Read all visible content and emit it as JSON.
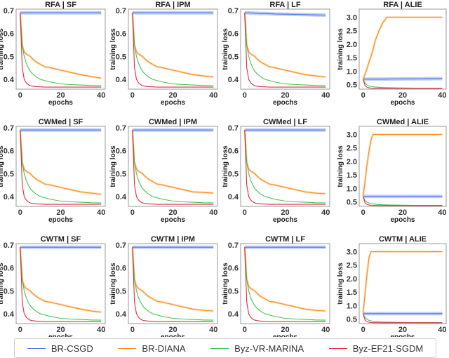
{
  "chart_data": [
    {
      "title": "RFA | SF",
      "type": "line",
      "ylim": [
        0.357,
        0.706
      ],
      "yticks": [
        0.4,
        0.5,
        0.6,
        0.7
      ],
      "series": [
        [
          0.69,
          0.69,
          0.69,
          0.69,
          0.69,
          0.69,
          0.69,
          0.69,
          0.69,
          0.69,
          0.69,
          0.69,
          0.69,
          0.69,
          0.69,
          0.69
        ],
        [
          0.69,
          0.55,
          0.52,
          0.51,
          0.505,
          0.5,
          0.49,
          0.475,
          0.465,
          0.455,
          0.45,
          0.44,
          0.43,
          0.42,
          0.412,
          0.405
        ],
        [
          0.69,
          0.55,
          0.5,
          0.47,
          0.45,
          0.435,
          0.425,
          0.41,
          0.4,
          0.395,
          0.388,
          0.38,
          0.377,
          0.375,
          0.373,
          0.372
        ],
        [
          0.69,
          0.45,
          0.4,
          0.385,
          0.377,
          0.372,
          0.37,
          0.368,
          0.367,
          0.366,
          0.366,
          0.366,
          0.366,
          0.366,
          0.366,
          0.366
        ]
      ]
    },
    {
      "title": "RFA | IPM",
      "type": "line",
      "ylim": [
        0.357,
        0.706
      ],
      "yticks": [
        0.4,
        0.5,
        0.6,
        0.7
      ],
      "series": [
        [
          0.69,
          0.69,
          0.69,
          0.69,
          0.69,
          0.69,
          0.69,
          0.69,
          0.69,
          0.69,
          0.69,
          0.69,
          0.69,
          0.69,
          0.69,
          0.69
        ],
        [
          0.69,
          0.55,
          0.52,
          0.51,
          0.505,
          0.5,
          0.49,
          0.475,
          0.465,
          0.455,
          0.45,
          0.44,
          0.43,
          0.42,
          0.415,
          0.41
        ],
        [
          0.69,
          0.55,
          0.5,
          0.47,
          0.45,
          0.435,
          0.425,
          0.41,
          0.4,
          0.395,
          0.388,
          0.38,
          0.377,
          0.375,
          0.373,
          0.372
        ],
        [
          0.69,
          0.45,
          0.4,
          0.385,
          0.377,
          0.372,
          0.37,
          0.368,
          0.367,
          0.366,
          0.366,
          0.366,
          0.366,
          0.366,
          0.366,
          0.366
        ]
      ]
    },
    {
      "title": "RFA | LF",
      "type": "line",
      "ylim": [
        0.357,
        0.706
      ],
      "yticks": [
        0.4,
        0.5,
        0.6,
        0.7
      ],
      "series": [
        [
          0.69,
          0.69,
          0.69,
          0.689,
          0.689,
          0.688,
          0.688,
          0.687,
          0.687,
          0.686,
          0.685,
          0.684,
          0.683,
          0.682,
          0.681,
          0.68
        ],
        [
          0.69,
          0.55,
          0.52,
          0.51,
          0.505,
          0.5,
          0.49,
          0.475,
          0.465,
          0.455,
          0.45,
          0.44,
          0.43,
          0.42,
          0.415,
          0.41
        ],
        [
          0.69,
          0.55,
          0.5,
          0.47,
          0.45,
          0.435,
          0.425,
          0.41,
          0.4,
          0.395,
          0.388,
          0.38,
          0.377,
          0.375,
          0.373,
          0.372
        ],
        [
          0.69,
          0.45,
          0.4,
          0.385,
          0.377,
          0.372,
          0.37,
          0.368,
          0.367,
          0.366,
          0.366,
          0.366,
          0.366,
          0.366,
          0.366,
          0.366
        ]
      ]
    },
    {
      "title": "RFA | ALIE",
      "type": "line",
      "ylim": [
        0.33,
        3.3
      ],
      "yticks": [
        0.5,
        1.0,
        1.5,
        2.0,
        2.5,
        3.0
      ],
      "series": [
        [
          0.7,
          0.7,
          0.7,
          0.7,
          0.7,
          0.7,
          0.7,
          0.7,
          0.7,
          0.705,
          0.707,
          0.71,
          0.712,
          0.715,
          0.717,
          0.72
        ],
        [
          0.69,
          0.9,
          1.1,
          1.35,
          1.55,
          1.8,
          2.1,
          2.5,
          2.8,
          3.0,
          3.0,
          3.0,
          3.0,
          3.0,
          3.0,
          3.0
        ],
        [
          0.69,
          0.55,
          0.48,
          0.45,
          0.43,
          0.42,
          0.41,
          0.4,
          0.39,
          0.385,
          0.38,
          0.375,
          0.37,
          0.37,
          0.37,
          0.37
        ],
        [
          0.69,
          0.45,
          0.4,
          0.38,
          0.37,
          0.365,
          0.363,
          0.362,
          0.361,
          0.36,
          0.36,
          0.36,
          0.36,
          0.36,
          0.36,
          0.36
        ]
      ]
    },
    {
      "title": "CWMed | SF",
      "type": "line",
      "ylim": [
        0.357,
        0.706
      ],
      "yticks": [
        0.4,
        0.5,
        0.6,
        0.7
      ],
      "series": [
        [
          0.69,
          0.69,
          0.69,
          0.69,
          0.69,
          0.69,
          0.69,
          0.69,
          0.69,
          0.69,
          0.69,
          0.69,
          0.69,
          0.69,
          0.69,
          0.69
        ],
        [
          0.69,
          0.55,
          0.52,
          0.51,
          0.505,
          0.5,
          0.49,
          0.475,
          0.465,
          0.455,
          0.45,
          0.44,
          0.43,
          0.42,
          0.415,
          0.41
        ],
        [
          0.69,
          0.55,
          0.5,
          0.47,
          0.45,
          0.435,
          0.425,
          0.41,
          0.4,
          0.395,
          0.388,
          0.38,
          0.377,
          0.375,
          0.373,
          0.372
        ],
        [
          0.69,
          0.45,
          0.4,
          0.385,
          0.377,
          0.372,
          0.37,
          0.368,
          0.367,
          0.366,
          0.366,
          0.366,
          0.366,
          0.366,
          0.366,
          0.366
        ]
      ]
    },
    {
      "title": "CWMed | IPM",
      "type": "line",
      "ylim": [
        0.357,
        0.706
      ],
      "yticks": [
        0.4,
        0.5,
        0.6,
        0.7
      ],
      "series": [
        [
          0.69,
          0.69,
          0.69,
          0.69,
          0.69,
          0.69,
          0.69,
          0.69,
          0.69,
          0.69,
          0.69,
          0.69,
          0.69,
          0.69,
          0.69,
          0.69
        ],
        [
          0.69,
          0.55,
          0.52,
          0.51,
          0.505,
          0.5,
          0.49,
          0.475,
          0.465,
          0.455,
          0.45,
          0.44,
          0.43,
          0.42,
          0.418,
          0.415
        ],
        [
          0.69,
          0.55,
          0.5,
          0.47,
          0.45,
          0.435,
          0.425,
          0.41,
          0.4,
          0.395,
          0.388,
          0.38,
          0.377,
          0.375,
          0.373,
          0.372
        ],
        [
          0.69,
          0.45,
          0.4,
          0.385,
          0.377,
          0.372,
          0.37,
          0.368,
          0.367,
          0.366,
          0.366,
          0.366,
          0.366,
          0.366,
          0.366,
          0.366
        ]
      ]
    },
    {
      "title": "CWMed | LF",
      "type": "line",
      "ylim": [
        0.357,
        0.706
      ],
      "yticks": [
        0.4,
        0.5,
        0.6,
        0.7
      ],
      "series": [
        [
          0.69,
          0.69,
          0.69,
          0.69,
          0.69,
          0.69,
          0.69,
          0.69,
          0.69,
          0.69,
          0.69,
          0.69,
          0.69,
          0.69,
          0.69,
          0.69
        ],
        [
          0.69,
          0.55,
          0.52,
          0.51,
          0.505,
          0.5,
          0.49,
          0.475,
          0.465,
          0.455,
          0.45,
          0.44,
          0.43,
          0.42,
          0.415,
          0.412
        ],
        [
          0.69,
          0.55,
          0.5,
          0.47,
          0.45,
          0.435,
          0.425,
          0.41,
          0.4,
          0.395,
          0.388,
          0.38,
          0.377,
          0.375,
          0.373,
          0.372
        ],
        [
          0.69,
          0.45,
          0.4,
          0.385,
          0.377,
          0.372,
          0.37,
          0.368,
          0.367,
          0.366,
          0.366,
          0.366,
          0.366,
          0.366,
          0.366,
          0.366
        ]
      ]
    },
    {
      "title": "CWMed | ALIE",
      "type": "line",
      "ylim": [
        0.33,
        3.3
      ],
      "yticks": [
        0.5,
        1.0,
        1.5,
        2.0,
        2.5,
        3.0
      ],
      "series": [
        [
          0.7,
          0.7,
          0.7,
          0.7,
          0.7,
          0.7,
          0.7,
          0.7,
          0.7,
          0.7,
          0.7,
          0.7,
          0.7,
          0.7,
          0.7,
          0.7
        ],
        [
          0.69,
          1.3,
          1.9,
          2.4,
          2.8,
          3.0,
          3.0,
          3.0,
          3.0,
          3.0,
          3.0,
          3.0,
          3.0,
          3.0,
          3.0,
          3.0
        ],
        [
          0.69,
          0.55,
          0.48,
          0.45,
          0.43,
          0.42,
          0.41,
          0.4,
          0.39,
          0.385,
          0.38,
          0.375,
          0.37,
          0.37,
          0.37,
          0.37
        ],
        [
          0.69,
          0.45,
          0.4,
          0.38,
          0.37,
          0.365,
          0.363,
          0.362,
          0.361,
          0.36,
          0.36,
          0.36,
          0.36,
          0.36,
          0.36,
          0.36
        ]
      ]
    },
    {
      "title": "CWTM | SF",
      "type": "line",
      "ylim": [
        0.357,
        0.706
      ],
      "yticks": [
        0.4,
        0.5,
        0.6,
        0.7
      ],
      "series": [
        [
          0.69,
          0.69,
          0.69,
          0.69,
          0.69,
          0.69,
          0.69,
          0.69,
          0.69,
          0.69,
          0.69,
          0.69,
          0.69,
          0.69,
          0.69,
          0.69
        ],
        [
          0.69,
          0.55,
          0.52,
          0.51,
          0.505,
          0.5,
          0.49,
          0.475,
          0.465,
          0.455,
          0.45,
          0.44,
          0.43,
          0.42,
          0.412,
          0.407
        ],
        [
          0.69,
          0.55,
          0.5,
          0.47,
          0.45,
          0.435,
          0.425,
          0.41,
          0.4,
          0.395,
          0.388,
          0.38,
          0.377,
          0.375,
          0.373,
          0.372
        ],
        [
          0.69,
          0.45,
          0.4,
          0.385,
          0.377,
          0.372,
          0.37,
          0.368,
          0.367,
          0.366,
          0.366,
          0.366,
          0.366,
          0.366,
          0.366,
          0.366
        ]
      ]
    },
    {
      "title": "CWTM | IPM",
      "type": "line",
      "ylim": [
        0.357,
        0.706
      ],
      "yticks": [
        0.4,
        0.5,
        0.6,
        0.7
      ],
      "series": [
        [
          0.69,
          0.69,
          0.69,
          0.69,
          0.69,
          0.69,
          0.69,
          0.69,
          0.69,
          0.69,
          0.69,
          0.69,
          0.69,
          0.69,
          0.69,
          0.69
        ],
        [
          0.69,
          0.55,
          0.52,
          0.51,
          0.505,
          0.5,
          0.49,
          0.475,
          0.465,
          0.455,
          0.45,
          0.44,
          0.43,
          0.42,
          0.415,
          0.412
        ],
        [
          0.69,
          0.55,
          0.5,
          0.47,
          0.45,
          0.435,
          0.425,
          0.41,
          0.4,
          0.395,
          0.388,
          0.38,
          0.377,
          0.375,
          0.373,
          0.372
        ],
        [
          0.69,
          0.45,
          0.4,
          0.385,
          0.377,
          0.372,
          0.37,
          0.368,
          0.367,
          0.366,
          0.366,
          0.366,
          0.366,
          0.366,
          0.366,
          0.366
        ]
      ]
    },
    {
      "title": "CWTM | LF",
      "type": "line",
      "ylim": [
        0.357,
        0.706
      ],
      "yticks": [
        0.4,
        0.5,
        0.6,
        0.7
      ],
      "series": [
        [
          0.69,
          0.69,
          0.69,
          0.69,
          0.69,
          0.69,
          0.69,
          0.69,
          0.69,
          0.69,
          0.69,
          0.69,
          0.69,
          0.69,
          0.69,
          0.69
        ],
        [
          0.69,
          0.55,
          0.52,
          0.51,
          0.505,
          0.5,
          0.49,
          0.475,
          0.465,
          0.455,
          0.45,
          0.44,
          0.43,
          0.42,
          0.415,
          0.412
        ],
        [
          0.69,
          0.55,
          0.5,
          0.47,
          0.45,
          0.435,
          0.425,
          0.41,
          0.4,
          0.395,
          0.388,
          0.38,
          0.377,
          0.375,
          0.373,
          0.372
        ],
        [
          0.69,
          0.45,
          0.4,
          0.385,
          0.377,
          0.372,
          0.37,
          0.368,
          0.367,
          0.366,
          0.366,
          0.366,
          0.366,
          0.366,
          0.366,
          0.366
        ]
      ]
    },
    {
      "title": "CWTM | ALIE",
      "type": "line",
      "ylim": [
        0.33,
        3.3
      ],
      "yticks": [
        0.5,
        1.0,
        1.5,
        2.0,
        2.5,
        3.0
      ],
      "series": [
        [
          0.7,
          0.7,
          0.7,
          0.7,
          0.7,
          0.7,
          0.7,
          0.7,
          0.7,
          0.7,
          0.7,
          0.7,
          0.7,
          0.7,
          0.7,
          0.7
        ],
        [
          0.69,
          1.5,
          2.2,
          2.8,
          3.0,
          3.0,
          3.0,
          3.0,
          3.0,
          3.0,
          3.0,
          3.0,
          3.0,
          3.0,
          3.0,
          3.0
        ],
        [
          0.69,
          0.55,
          0.48,
          0.45,
          0.43,
          0.42,
          0.41,
          0.4,
          0.39,
          0.385,
          0.38,
          0.375,
          0.37,
          0.37,
          0.37,
          0.37
        ],
        [
          0.69,
          0.45,
          0.4,
          0.38,
          0.37,
          0.365,
          0.363,
          0.362,
          0.361,
          0.36,
          0.36,
          0.36,
          0.36,
          0.36,
          0.36,
          0.36
        ]
      ]
    }
  ],
  "shared": {
    "x": [
      0,
      1,
      2,
      3,
      4,
      5,
      6,
      8,
      10,
      12,
      15,
      20,
      25,
      30,
      35,
      40
    ],
    "xlim": [
      -2,
      42
    ],
    "xticks": [
      0,
      20,
      40
    ],
    "xlabel": "epochs",
    "ylabel": "training loss",
    "grid": false
  },
  "legend": {
    "placement": "bottom",
    "entries": [
      {
        "name": "BR-CSGD",
        "color": "#4a74e8"
      },
      {
        "name": "BR-DIANA",
        "color": "#ff8c1a"
      },
      {
        "name": "Byz-VR-MARINA",
        "color": "#3cc850"
      },
      {
        "name": "Byz-EF21-SGDM",
        "color": "#e8283c"
      }
    ]
  }
}
